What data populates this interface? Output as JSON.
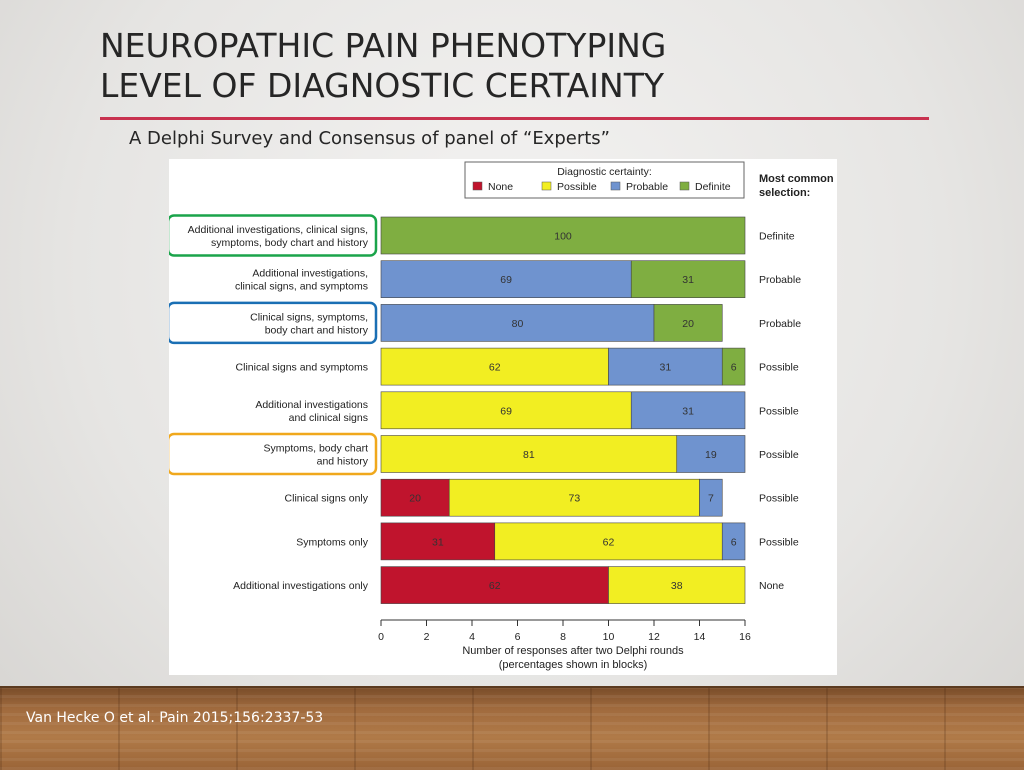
{
  "slide": {
    "title_line1": "NEUROPATHIC PAIN PHENOTYPING",
    "title_line2": "LEVEL OF DIAGNOSTIC CERTAINTY",
    "subtitle": "A Delphi Survey and Consensus of panel of “Experts”",
    "citation": "Van Hecke O et al. Pain 2015;156:2337-53",
    "accent_color": "#c8324f"
  },
  "chart_data": {
    "type": "bar",
    "orientation": "horizontal",
    "stacked": true,
    "legend_title": "Diagnostic certainty:",
    "legend_position": "top",
    "right_column_title": "Most common selection:",
    "xlabel": "Number of responses after two Delphi rounds",
    "xlabel_note": "(percentages shown in blocks)",
    "xlim": [
      0,
      16
    ],
    "xticks": [
      0,
      2,
      4,
      6,
      8,
      10,
      12,
      14,
      16
    ],
    "series": [
      {
        "name": "None",
        "color": "#c0142d"
      },
      {
        "name": "Possible",
        "color": "#f2ee22"
      },
      {
        "name": "Probable",
        "color": "#6f93cf"
      },
      {
        "name": "Definite",
        "color": "#7fae41"
      }
    ],
    "rows": [
      {
        "label": [
          "Additional investigations, clinical signs,",
          "symptoms, body chart and history"
        ],
        "highlight": "#1aa44a",
        "counts": [
          0,
          0,
          0,
          16
        ],
        "percents": [
          0,
          0,
          0,
          100
        ],
        "most_common": "Definite"
      },
      {
        "label": [
          "Additional investigations,",
          "clinical signs, and symptoms"
        ],
        "highlight": null,
        "counts": [
          0,
          0,
          11,
          5
        ],
        "percents": [
          0,
          0,
          69,
          31
        ],
        "most_common": "Probable"
      },
      {
        "label": [
          "Clinical signs, symptoms,",
          "body chart and history"
        ],
        "highlight": "#1a6fb4",
        "counts": [
          0,
          0,
          12,
          3
        ],
        "percents": [
          0,
          0,
          80,
          20
        ],
        "most_common": "Probable"
      },
      {
        "label": [
          "Clinical signs and symptoms"
        ],
        "highlight": null,
        "counts": [
          0,
          10,
          5,
          1
        ],
        "percents": [
          0,
          62,
          31,
          6
        ],
        "most_common": "Possible"
      },
      {
        "label": [
          "Additional investigations",
          "and clinical signs"
        ],
        "highlight": null,
        "counts": [
          0,
          11,
          5,
          0
        ],
        "percents": [
          0,
          69,
          31,
          0
        ],
        "most_common": "Possible"
      },
      {
        "label": [
          "Symptoms, body chart",
          "and history"
        ],
        "highlight": "#f0a81c",
        "counts": [
          0,
          13,
          3,
          0
        ],
        "percents": [
          0,
          81,
          19,
          0
        ],
        "most_common": "Possible"
      },
      {
        "label": [
          "Clinical signs only"
        ],
        "highlight": null,
        "counts": [
          3,
          11,
          1,
          0
        ],
        "percents": [
          20,
          73,
          7,
          0
        ],
        "most_common": "Possible"
      },
      {
        "label": [
          "Symptoms only"
        ],
        "highlight": null,
        "counts": [
          5,
          10,
          1,
          0
        ],
        "percents": [
          31,
          62,
          6,
          0
        ],
        "most_common": "Possible"
      },
      {
        "label": [
          "Additional investigations only"
        ],
        "highlight": null,
        "counts": [
          10,
          6,
          0,
          0
        ],
        "percents": [
          62,
          38,
          0,
          0
        ],
        "most_common": "None"
      }
    ]
  }
}
